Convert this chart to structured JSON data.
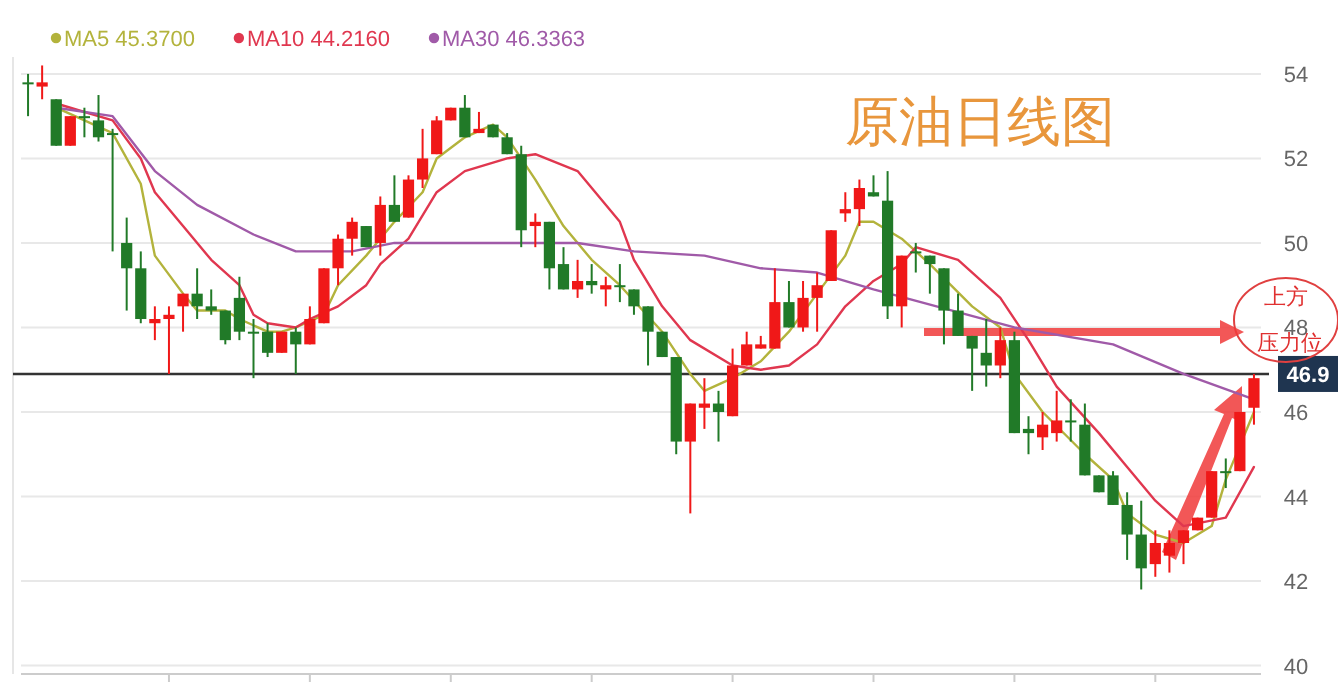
{
  "chart_data": {
    "type": "candlestick",
    "title": "原油日线图",
    "categories": [
      null,
      null,
      null,
      null,
      null,
      null,
      null,
      null,
      null,
      null,
      null,
      null,
      null,
      null,
      null,
      null,
      null,
      null,
      null,
      null,
      null,
      null,
      null,
      null,
      null,
      null,
      null,
      null,
      null,
      null,
      null,
      null,
      null,
      null,
      null,
      null,
      null,
      null,
      null,
      null,
      null,
      null,
      null,
      null,
      null,
      null,
      null,
      null,
      null,
      null,
      null,
      null,
      null,
      null,
      null,
      null,
      null,
      null,
      null,
      null,
      null,
      null,
      null,
      null,
      null,
      null,
      null,
      null,
      null,
      null,
      null,
      null,
      null,
      null,
      null,
      null,
      null,
      null,
      null,
      null,
      null,
      null,
      null,
      null,
      null,
      null,
      null,
      null
    ],
    "ohlc": [
      [
        53.8,
        54.0,
        53.0,
        53.8
      ],
      [
        53.7,
        54.2,
        53.4,
        53.8
      ],
      [
        53.4,
        53.4,
        52.3,
        52.3
      ],
      [
        52.3,
        53.0,
        52.3,
        53.0
      ],
      [
        53.0,
        53.2,
        52.5,
        53.0
      ],
      [
        52.9,
        53.5,
        52.4,
        52.5
      ],
      [
        52.6,
        52.7,
        49.8,
        52.6
      ],
      [
        50.0,
        50.6,
        48.4,
        49.4
      ],
      [
        49.4,
        49.8,
        48.1,
        48.2
      ],
      [
        48.1,
        48.5,
        47.7,
        48.2
      ],
      [
        48.2,
        48.5,
        46.9,
        48.3
      ],
      [
        48.5,
        48.8,
        47.9,
        48.8
      ],
      [
        48.8,
        49.4,
        48.2,
        48.5
      ],
      [
        48.5,
        48.9,
        48.3,
        48.4
      ],
      [
        48.4,
        48.4,
        47.6,
        47.7
      ],
      [
        48.7,
        49.2,
        47.7,
        47.9
      ],
      [
        47.9,
        48.2,
        46.8,
        47.9
      ],
      [
        47.9,
        48.1,
        47.3,
        47.4
      ],
      [
        47.4,
        47.9,
        47.4,
        47.9
      ],
      [
        47.9,
        48.0,
        46.9,
        47.6
      ],
      [
        47.6,
        48.5,
        47.6,
        48.2
      ],
      [
        48.1,
        49.4,
        48.1,
        49.4
      ],
      [
        49.4,
        50.2,
        49.0,
        50.1
      ],
      [
        50.1,
        50.6,
        49.7,
        50.5
      ],
      [
        50.4,
        50.4,
        49.9,
        49.9
      ],
      [
        50.0,
        51.1,
        49.7,
        50.9
      ],
      [
        50.9,
        51.6,
        50.5,
        50.5
      ],
      [
        50.6,
        51.6,
        50.6,
        51.5
      ],
      [
        51.5,
        52.7,
        51.3,
        52.0
      ],
      [
        52.1,
        53.0,
        52.1,
        52.9
      ],
      [
        52.9,
        53.2,
        52.9,
        53.2
      ],
      [
        53.2,
        53.5,
        52.5,
        52.5
      ],
      [
        52.6,
        53.1,
        52.6,
        52.7
      ],
      [
        52.8,
        52.8,
        52.5,
        52.5
      ],
      [
        52.5,
        52.6,
        52.1,
        52.1
      ],
      [
        52.1,
        52.3,
        49.9,
        50.3
      ],
      [
        50.4,
        50.7,
        49.9,
        50.5
      ],
      [
        50.5,
        50.5,
        48.9,
        49.4
      ],
      [
        49.5,
        49.9,
        48.9,
        48.9
      ],
      [
        48.9,
        49.6,
        48.7,
        49.1
      ],
      [
        49.1,
        49.5,
        48.8,
        49.0
      ],
      [
        48.9,
        49.2,
        48.5,
        49.0
      ],
      [
        49.0,
        49.5,
        48.6,
        49.0
      ],
      [
        48.9,
        48.9,
        48.3,
        48.5
      ],
      [
        48.5,
        48.5,
        47.1,
        47.9
      ],
      [
        47.9,
        47.9,
        47.3,
        47.3
      ],
      [
        47.3,
        47.3,
        45.0,
        45.3
      ],
      [
        45.3,
        46.2,
        43.6,
        46.2
      ],
      [
        46.1,
        46.8,
        45.6,
        46.2
      ],
      [
        46.2,
        46.5,
        45.3,
        46.0
      ],
      [
        45.9,
        47.5,
        45.9,
        47.1
      ],
      [
        47.1,
        47.9,
        47.1,
        47.6
      ],
      [
        47.5,
        47.8,
        47.5,
        47.6
      ],
      [
        47.5,
        49.4,
        47.5,
        48.6
      ],
      [
        48.6,
        49.1,
        48.0,
        48.0
      ],
      [
        48.0,
        49.1,
        47.9,
        48.7
      ],
      [
        48.7,
        49.3,
        47.9,
        49.0
      ],
      [
        49.1,
        50.3,
        49.1,
        50.3
      ],
      [
        50.7,
        51.2,
        50.5,
        50.8
      ],
      [
        50.8,
        51.5,
        50.4,
        51.3
      ],
      [
        51.2,
        51.6,
        51.1,
        51.1
      ],
      [
        51.0,
        51.7,
        48.2,
        48.5
      ],
      [
        48.5,
        49.7,
        48.0,
        49.7
      ],
      [
        49.8,
        50.0,
        49.3,
        49.8
      ],
      [
        49.7,
        49.7,
        48.8,
        49.5
      ],
      [
        49.4,
        49.4,
        47.6,
        48.4
      ],
      [
        48.4,
        48.8,
        47.8,
        47.8
      ],
      [
        47.8,
        47.8,
        46.5,
        47.5
      ],
      [
        47.4,
        48.2,
        46.6,
        47.1
      ],
      [
        47.1,
        48.0,
        46.8,
        47.7
      ],
      [
        47.7,
        47.9,
        45.5,
        45.5
      ],
      [
        45.6,
        45.9,
        45.0,
        45.5
      ],
      [
        45.4,
        46.0,
        45.1,
        45.7
      ],
      [
        45.5,
        46.5,
        45.3,
        45.8
      ],
      [
        45.8,
        46.3,
        45.3,
        45.8
      ],
      [
        45.7,
        46.2,
        44.5,
        44.5
      ],
      [
        44.5,
        44.5,
        44.1,
        44.1
      ],
      [
        44.5,
        44.6,
        43.8,
        43.8
      ],
      [
        43.8,
        44.1,
        42.5,
        43.1
      ],
      [
        43.1,
        43.9,
        41.8,
        42.3
      ],
      [
        42.4,
        43.2,
        42.1,
        42.9
      ],
      [
        42.6,
        43.2,
        42.2,
        42.9
      ],
      [
        42.9,
        43.2,
        42.4,
        43.2
      ],
      [
        43.2,
        43.5,
        43.2,
        43.5
      ],
      [
        43.5,
        44.6,
        43.5,
        44.6
      ],
      [
        44.6,
        44.9,
        44.2,
        44.6
      ],
      [
        44.6,
        46.0,
        44.6,
        46.0
      ],
      [
        46.1,
        46.9,
        45.7,
        46.8
      ]
    ],
    "series": [
      {
        "name": "MA5 45.3700",
        "type": "line",
        "color": "#b3b33c",
        "values": [
          null,
          null,
          53.2,
          null,
          null,
          null,
          52.6,
          null,
          51.4,
          49.7,
          null,
          48.8,
          48.4,
          null,
          48.4,
          48.2,
          null,
          47.9,
          47.9,
          48.0,
          null,
          48.3,
          49.0,
          null,
          49.7,
          50.1,
          50.5,
          null,
          51.2,
          52.0,
          null,
          52.5,
          null,
          52.8,
          52.5,
          null,
          51.5,
          null,
          50.4,
          null,
          49.6,
          null,
          49.0,
          null,
          null,
          47.9,
          null,
          46.9,
          46.5,
          null,
          46.8,
          null,
          47.2,
          null,
          47.9,
          null,
          48.8,
          null,
          49.7,
          50.5,
          50.5,
          null,
          50.1,
          null,
          49.5,
          null,
          null,
          48.5,
          null,
          48.0,
          46.9,
          null,
          46.0,
          null,
          null,
          45.0,
          null,
          44.4,
          43.6,
          null,
          43.1,
          null,
          42.9,
          null,
          43.3,
          44.4,
          null,
          46.0
        ]
      },
      {
        "name": "MA10 44.2160",
        "type": "line",
        "color": "#e0374f",
        "values": [
          null,
          null,
          53.3,
          null,
          null,
          null,
          52.9,
          null,
          52.0,
          51.2,
          null,
          50.4,
          null,
          49.6,
          null,
          49.0,
          48.3,
          48.1,
          null,
          48.0,
          48.2,
          null,
          48.5,
          null,
          49.0,
          49.5,
          null,
          50.1,
          null,
          51.2,
          null,
          51.7,
          null,
          null,
          52.0,
          null,
          52.1,
          null,
          null,
          51.7,
          null,
          null,
          50.5,
          49.6,
          null,
          48.5,
          null,
          47.7,
          null,
          null,
          47.1,
          null,
          47.0,
          null,
          47.1,
          null,
          47.6,
          null,
          48.5,
          null,
          49.1,
          null,
          49.5,
          49.9,
          null,
          null,
          49.6,
          null,
          null,
          48.7,
          null,
          47.7,
          null,
          46.6,
          null,
          null,
          45.5,
          null,
          44.7,
          null,
          43.9,
          null,
          43.3,
          null,
          null,
          43.5,
          null,
          44.7
        ]
      },
      {
        "name": "MA30 46.3363",
        "type": "line",
        "color": "#a05aa8",
        "values": [
          null,
          null,
          53.2,
          null,
          null,
          null,
          53.0,
          null,
          null,
          51.7,
          null,
          null,
          50.9,
          null,
          null,
          null,
          50.2,
          null,
          null,
          49.8,
          null,
          null,
          null,
          49.8,
          null,
          null,
          50.0,
          null,
          null,
          null,
          null,
          null,
          null,
          null,
          null,
          50.0,
          null,
          null,
          null,
          50.0,
          null,
          null,
          null,
          49.8,
          null,
          null,
          null,
          null,
          49.7,
          null,
          null,
          null,
          49.4,
          null,
          null,
          null,
          49.3,
          null,
          null,
          null,
          48.9,
          null,
          null,
          null,
          null,
          null,
          null,
          null,
          null,
          null,
          48.0,
          null,
          null,
          null,
          null,
          null,
          null,
          47.6,
          null,
          null,
          null,
          null,
          46.9,
          null,
          null,
          null,
          null,
          46.3
        ]
      }
    ],
    "ylim": [
      39.8,
      54.4
    ],
    "yticks": [
      40,
      42,
      44,
      46,
      48,
      50,
      52,
      54
    ],
    "grid": "y",
    "legend": "top left",
    "tick_labels": "y",
    "ref_lines": [
      {
        "axis": "y",
        "value": 46.9,
        "label": "46.9",
        "color": "#333333"
      }
    ],
    "annotations": [
      "上方压力位"
    ]
  }
}
